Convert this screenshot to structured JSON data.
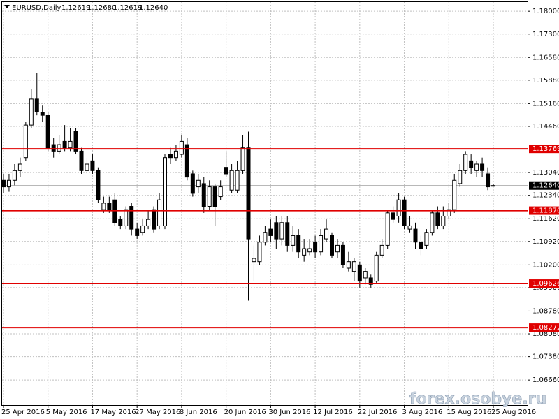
{
  "chart_data": {
    "type": "candlestick",
    "title": "EURUSD,Daily",
    "header_values": [
      "1.12619",
      "1.12680",
      "1.12619",
      "1.12640"
    ],
    "watermark": "forex.osobye.ru",
    "categories": [
      "25 Apr 2016",
      null,
      null,
      null,
      null,
      null,
      null,
      null,
      "5 May 2016",
      null,
      null,
      null,
      null,
      null,
      null,
      null,
      "17 May 2016",
      null,
      null,
      null,
      null,
      null,
      null,
      null,
      "27 May 2016",
      null,
      null,
      null,
      null,
      null,
      null,
      null,
      "8 Jun 2016",
      null,
      null,
      null,
      null,
      null,
      null,
      null,
      "20 Jun 2016",
      null,
      null,
      null,
      null,
      null,
      null,
      null,
      "30 Jun 2016",
      null,
      null,
      null,
      null,
      null,
      null,
      null,
      "12 Jul 2016",
      null,
      null,
      null,
      null,
      null,
      null,
      null,
      "22 Jul 2016",
      null,
      null,
      null,
      null,
      null,
      null,
      null,
      "3 Aug 2016",
      null,
      null,
      null,
      null,
      null,
      null,
      null,
      "15 Aug 2016",
      null,
      null,
      null,
      null,
      null,
      null,
      null,
      "25 Aug 2016"
    ],
    "open": [
      1.128,
      1.126,
      1.128,
      1.131,
      1.135,
      1.145,
      1.153,
      1.149,
      1.148,
      1.139,
      1.137,
      1.14,
      1.138,
      1.143,
      1.137,
      1.131,
      1.134,
      1.131,
      1.119,
      1.121,
      1.122,
      1.116,
      1.114,
      1.12,
      1.113,
      1.112,
      1.114,
      1.119,
      1.114,
      1.114,
      1.136,
      1.135,
      1.136,
      1.139,
      1.13,
      1.126,
      1.127,
      1.12,
      1.126,
      1.123,
      1.132,
      1.125,
      1.125,
      1.131,
      1.138,
      1.103,
      1.103,
      1.109,
      1.113,
      1.115,
      1.11,
      1.115,
      1.108,
      1.111,
      1.105,
      1.106,
      1.109,
      1.106,
      1.11,
      1.111,
      1.106,
      1.108,
      1.101,
      1.1,
      1.102,
      1.098,
      1.098,
      1.097,
      1.105,
      1.108,
      1.118,
      1.117,
      1.122,
      1.113,
      1.113,
      1.109,
      1.108,
      1.112,
      1.118,
      1.114,
      1.117,
      1.119,
      1.127,
      1.131,
      1.134,
      1.131,
      1.133,
      1.13,
      1.12619
    ],
    "high": [
      1.13,
      1.13,
      1.133,
      1.135,
      1.146,
      1.156,
      1.161,
      1.151,
      1.149,
      1.141,
      1.142,
      1.145,
      1.144,
      1.144,
      1.138,
      1.135,
      1.136,
      1.132,
      1.123,
      1.123,
      1.124,
      1.117,
      1.12,
      1.121,
      1.115,
      1.116,
      1.119,
      1.12,
      1.124,
      1.136,
      1.138,
      1.139,
      1.142,
      1.141,
      1.131,
      1.13,
      1.129,
      1.128,
      1.127,
      1.128,
      1.137,
      1.133,
      1.134,
      1.142,
      1.143,
      1.108,
      1.111,
      1.114,
      1.116,
      1.117,
      1.117,
      1.117,
      1.114,
      1.113,
      1.11,
      1.11,
      1.111,
      1.113,
      1.116,
      1.112,
      1.11,
      1.109,
      1.106,
      1.104,
      1.103,
      1.101,
      1.099,
      1.106,
      1.11,
      1.119,
      1.12,
      1.124,
      1.123,
      1.117,
      1.115,
      1.111,
      1.113,
      1.119,
      1.12,
      1.12,
      1.121,
      1.13,
      1.133,
      1.137,
      1.136,
      1.134,
      1.135,
      1.132,
      1.1268
    ],
    "low": [
      1.124,
      1.1245,
      1.1265,
      1.129,
      1.134,
      1.144,
      1.148,
      1.146,
      1.137,
      1.135,
      1.136,
      1.137,
      1.137,
      1.136,
      1.13,
      1.13,
      1.13,
      1.121,
      1.118,
      1.118,
      1.114,
      1.113,
      1.113,
      1.111,
      1.11,
      1.111,
      1.113,
      1.112,
      1.113,
      1.113,
      1.133,
      1.134,
      1.135,
      1.128,
      1.123,
      1.124,
      1.118,
      1.119,
      1.114,
      1.122,
      1.129,
      1.124,
      1.124,
      1.13,
      1.091,
      1.097,
      1.102,
      1.108,
      1.109,
      1.107,
      1.108,
      1.106,
      1.106,
      1.104,
      1.103,
      1.105,
      1.104,
      1.105,
      1.109,
      1.104,
      1.104,
      1.101,
      1.1,
      1.097,
      1.095,
      1.096,
      1.095,
      1.0965,
      1.104,
      1.107,
      1.115,
      1.115,
      1.113,
      1.112,
      1.107,
      1.105,
      1.107,
      1.111,
      1.113,
      1.113,
      1.116,
      1.118,
      1.126,
      1.13,
      1.13,
      1.129,
      1.129,
      1.125,
      1.12619
    ],
    "close": [
      1.126,
      1.128,
      1.131,
      1.133,
      1.145,
      1.153,
      1.149,
      1.148,
      1.138,
      1.137,
      1.139,
      1.138,
      1.14,
      1.137,
      1.131,
      1.133,
      1.131,
      1.122,
      1.121,
      1.119,
      1.115,
      1.114,
      1.119,
      1.113,
      1.111,
      1.114,
      1.116,
      1.113,
      1.122,
      1.135,
      1.135,
      1.137,
      1.14,
      1.129,
      1.124,
      1.128,
      1.12,
      1.126,
      1.12,
      1.126,
      1.13,
      1.131,
      1.131,
      1.138,
      1.11,
      1.104,
      1.109,
      1.112,
      1.111,
      1.11,
      1.115,
      1.108,
      1.111,
      1.106,
      1.107,
      1.107,
      1.106,
      1.111,
      1.113,
      1.105,
      1.108,
      1.102,
      1.103,
      1.103,
      1.097,
      1.1,
      1.096,
      1.105,
      1.108,
      1.118,
      1.116,
      1.122,
      1.114,
      1.114,
      1.109,
      1.107,
      1.112,
      1.118,
      1.114,
      1.117,
      1.119,
      1.128,
      1.131,
      1.136,
      1.132,
      1.133,
      1.131,
      1.126,
      1.1264
    ],
    "ylim": [
      1.0589,
      1.1824
    ],
    "yticks": [
      {
        "value": 1.18,
        "label": "1.18000"
      },
      {
        "value": 1.173,
        "label": "1.17300"
      },
      {
        "value": 1.1658,
        "label": "1.16580"
      },
      {
        "value": 1.1588,
        "label": "1.15880"
      },
      {
        "value": 1.1516,
        "label": "1.15160"
      },
      {
        "value": 1.1446,
        "label": "1.14460"
      },
      {
        "value": 1.1304,
        "label": "1.13040"
      },
      {
        "value": 1.1234,
        "label": "1.12340"
      },
      {
        "value": 1.1162,
        "label": "1.11620"
      },
      {
        "value": 1.1092,
        "label": "1.10920"
      },
      {
        "value": 1.102,
        "label": "1.10200"
      },
      {
        "value": 1.095,
        "label": "1.09500"
      },
      {
        "value": 1.0878,
        "label": "1.08780"
      },
      {
        "value": 1.0808,
        "label": "1.08080"
      },
      {
        "value": 1.0738,
        "label": "1.07380"
      },
      {
        "value": 1.0666,
        "label": "1.06660"
      }
    ],
    "levels": [
      1.13769,
      {
        "value": 1.1187,
        "label": "1.11870"
      },
      1.09626,
      1.08272
    ],
    "level_color": "#e00000",
    "current_price": {
      "value": 1.1264,
      "label": "1.12640"
    },
    "grid": true
  }
}
